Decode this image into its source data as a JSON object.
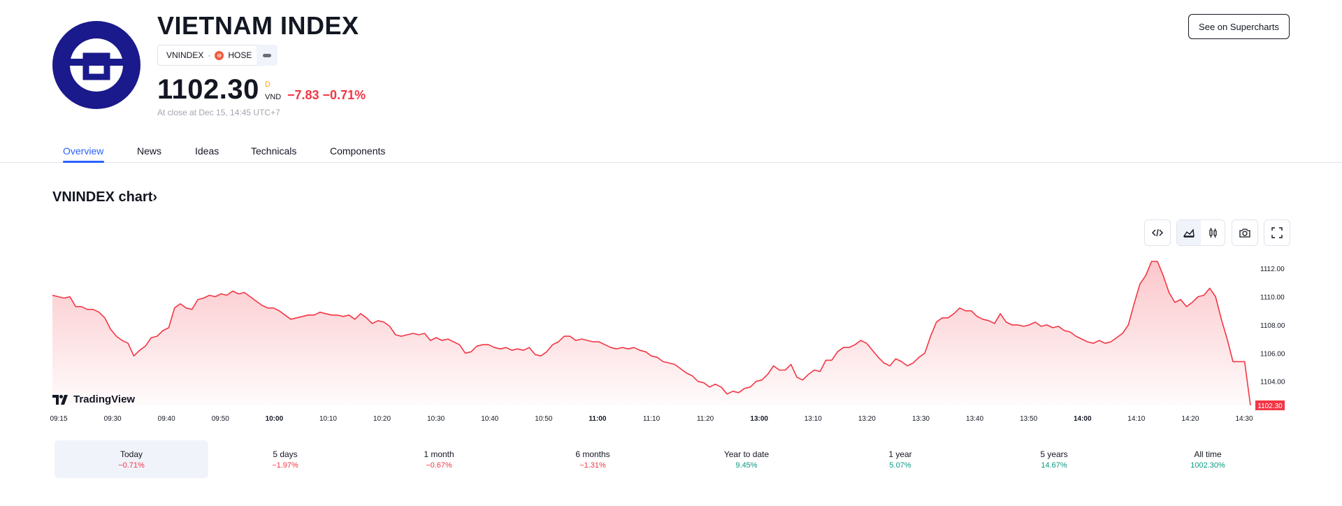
{
  "header": {
    "title": "VIETNAM INDEX",
    "symbol": "VNINDEX",
    "exchange": "HOSE",
    "price": "1102.30",
    "price_flag": "D",
    "currency": "VND",
    "change": "−7.83 −0.71%",
    "close_info": "At close at Dec 15, 14:45 UTC+7",
    "supercharts_label": "See on Supercharts"
  },
  "tabs": [
    {
      "label": "Overview",
      "active": true
    },
    {
      "label": "News"
    },
    {
      "label": "Ideas"
    },
    {
      "label": "Technicals"
    },
    {
      "label": "Components"
    }
  ],
  "chart_section": {
    "title": "VNINDEX chart›",
    "tools": [
      "embed-icon",
      "area-chart-icon",
      "candles-icon",
      "camera-icon",
      "fullscreen-icon"
    ],
    "watermark": "TradingView"
  },
  "chart_data": {
    "type": "area",
    "color": "#f23645",
    "y_ticks": [
      "1112.00",
      "1110.00",
      "1108.00",
      "1106.00",
      "1104.00"
    ],
    "ylim": [
      1102.3,
      1112.7
    ],
    "x_ticks": [
      "09:15",
      "09:30",
      "09:40",
      "09:50",
      "10:00",
      "10:10",
      "10:20",
      "10:30",
      "10:40",
      "10:50",
      "11:00",
      "11:10",
      "11:20",
      "13:00",
      "13:10",
      "13:20",
      "13:30",
      "13:40",
      "13:50",
      "14:00",
      "14:10",
      "14:20",
      "14:30"
    ],
    "bold_ticks": [
      "10:00",
      "11:00",
      "13:00",
      "14:00"
    ],
    "last_price_label": "1102.30",
    "points": [
      [
        "09:15",
        1110.1
      ],
      [
        "09:17",
        1110.0
      ],
      [
        "09:19",
        1109.9
      ],
      [
        "09:20",
        1110.0
      ],
      [
        "09:22",
        1109.3
      ],
      [
        "09:24",
        1109.3
      ],
      [
        "09:26",
        1109.1
      ],
      [
        "09:28",
        1109.1
      ],
      [
        "09:30",
        1108.9
      ],
      [
        "09:31",
        1108.5
      ],
      [
        "09:33",
        1107.7
      ],
      [
        "09:35",
        1107.2
      ],
      [
        "09:37",
        1106.9
      ],
      [
        "09:38",
        1106.7
      ],
      [
        "09:40",
        1105.8
      ],
      [
        "09:41",
        1106.2
      ],
      [
        "09:43",
        1106.5
      ],
      [
        "09:44",
        1107.1
      ],
      [
        "09:46",
        1107.2
      ],
      [
        "09:48",
        1107.6
      ],
      [
        "09:49",
        1107.8
      ],
      [
        "09:50",
        1109.2
      ],
      [
        "09:52",
        1109.5
      ],
      [
        "09:54",
        1109.2
      ],
      [
        "09:55",
        1109.1
      ],
      [
        "09:56",
        1109.8
      ],
      [
        "09:58",
        1109.9
      ],
      [
        "09:59",
        1110.1
      ],
      [
        "10:01",
        1110.0
      ],
      [
        "10:02",
        1110.2
      ],
      [
        "10:04",
        1110.1
      ],
      [
        "10:05",
        1110.4
      ],
      [
        "10:07",
        1110.2
      ],
      [
        "10:08",
        1110.3
      ],
      [
        "10:10",
        1110.0
      ],
      [
        "10:11",
        1109.7
      ],
      [
        "10:13",
        1109.4
      ],
      [
        "10:14",
        1109.2
      ],
      [
        "10:16",
        1109.2
      ],
      [
        "10:18",
        1109.0
      ],
      [
        "10:19",
        1108.7
      ],
      [
        "10:21",
        1108.4
      ],
      [
        "10:22",
        1108.5
      ],
      [
        "10:24",
        1108.6
      ],
      [
        "10:25",
        1108.7
      ],
      [
        "10:27",
        1108.7
      ],
      [
        "10:29",
        1108.9
      ],
      [
        "10:30",
        1108.8
      ],
      [
        "10:32",
        1108.7
      ],
      [
        "10:33",
        1108.7
      ],
      [
        "10:35",
        1108.6
      ],
      [
        "10:37",
        1108.7
      ],
      [
        "10:38",
        1108.4
      ],
      [
        "10:40",
        1108.8
      ],
      [
        "10:41",
        1108.5
      ],
      [
        "10:43",
        1108.1
      ],
      [
        "10:45",
        1108.3
      ],
      [
        "10:46",
        1108.2
      ],
      [
        "10:48",
        1107.9
      ],
      [
        "10:49",
        1107.3
      ],
      [
        "10:51",
        1107.2
      ],
      [
        "10:52",
        1107.3
      ],
      [
        "10:54",
        1107.4
      ],
      [
        "10:56",
        1107.3
      ],
      [
        "10:57",
        1107.4
      ],
      [
        "10:59",
        1106.9
      ],
      [
        "11:00",
        1107.1
      ],
      [
        "11:02",
        1106.9
      ],
      [
        "11:03",
        1107.0
      ],
      [
        "11:05",
        1106.8
      ],
      [
        "11:07",
        1106.6
      ],
      [
        "11:08",
        1106.0
      ],
      [
        "11:10",
        1106.1
      ],
      [
        "11:11",
        1106.5
      ],
      [
        "11:13",
        1106.6
      ],
      [
        "11:14",
        1106.6
      ],
      [
        "11:16",
        1106.4
      ],
      [
        "11:18",
        1106.3
      ],
      [
        "11:19",
        1106.4
      ],
      [
        "11:21",
        1106.2
      ],
      [
        "11:22",
        1106.3
      ],
      [
        "11:24",
        1106.2
      ],
      [
        "11:26",
        1106.4
      ],
      [
        "11:27",
        1105.9
      ],
      [
        "11:29",
        1105.8
      ],
      [
        "11:30",
        1106.1
      ],
      [
        "11:32",
        1106.6
      ],
      [
        "11:33",
        1106.8
      ],
      [
        "11:35",
        1107.2
      ],
      [
        "11:37",
        1107.2
      ],
      [
        "11:38",
        1106.9
      ],
      [
        "11:40",
        1107.0
      ],
      [
        "11:41",
        1106.9
      ],
      [
        "11:43",
        1106.8
      ],
      [
        "11:45",
        1106.8
      ],
      [
        "11:46",
        1106.6
      ],
      [
        "11:48",
        1106.4
      ],
      [
        "11:49",
        1106.3
      ],
      [
        "11:51",
        1106.4
      ],
      [
        "11:52",
        1106.3
      ],
      [
        "11:54",
        1106.4
      ],
      [
        "11:56",
        1106.2
      ],
      [
        "11:57",
        1106.1
      ],
      [
        "11:59",
        1105.8
      ],
      [
        "12:00",
        1105.7
      ],
      [
        "12:02",
        1105.4
      ],
      [
        "12:04",
        1105.3
      ],
      [
        "12:05",
        1105.2
      ],
      [
        "12:07",
        1104.9
      ],
      [
        "12:08",
        1104.6
      ],
      [
        "12:10",
        1104.4
      ],
      [
        "12:12",
        1104.0
      ],
      [
        "12:13",
        1103.9
      ],
      [
        "12:15",
        1103.6
      ],
      [
        "12:16",
        1103.8
      ],
      [
        "12:18",
        1103.6
      ],
      [
        "12:20",
        1103.1
      ],
      [
        "12:21",
        1103.3
      ],
      [
        "12:23",
        1103.2
      ],
      [
        "12:24",
        1103.5
      ],
      [
        "12:26",
        1103.6
      ],
      [
        "12:28",
        1104.0
      ],
      [
        "12:29",
        1104.1
      ],
      [
        "12:31",
        1104.5
      ],
      [
        "12:32",
        1105.1
      ],
      [
        "12:34",
        1104.8
      ],
      [
        "12:36",
        1104.8
      ],
      [
        "12:37",
        1105.2
      ],
      [
        "12:39",
        1104.3
      ],
      [
        "12:40",
        1104.1
      ],
      [
        "12:42",
        1104.5
      ],
      [
        "12:44",
        1104.8
      ],
      [
        "12:45",
        1104.7
      ],
      [
        "12:47",
        1105.5
      ],
      [
        "12:48",
        1105.5
      ],
      [
        "12:50",
        1106.1
      ],
      [
        "12:52",
        1106.4
      ],
      [
        "12:53",
        1106.4
      ],
      [
        "12:55",
        1106.6
      ],
      [
        "12:56",
        1106.9
      ],
      [
        "12:58",
        1106.7
      ],
      [
        "13:00",
        1106.2
      ],
      [
        "13:01",
        1105.7
      ],
      [
        "13:03",
        1105.3
      ],
      [
        "13:04",
        1105.1
      ],
      [
        "13:06",
        1105.6
      ],
      [
        "13:08",
        1105.4
      ],
      [
        "13:09",
        1105.1
      ],
      [
        "13:11",
        1105.3
      ],
      [
        "13:12",
        1105.7
      ],
      [
        "13:14",
        1106.0
      ],
      [
        "13:16",
        1107.2
      ],
      [
        "13:17",
        1108.2
      ],
      [
        "13:19",
        1108.5
      ],
      [
        "13:20",
        1108.5
      ],
      [
        "13:22",
        1108.8
      ],
      [
        "13:24",
        1109.2
      ],
      [
        "13:25",
        1109.0
      ],
      [
        "13:27",
        1109.0
      ],
      [
        "13:28",
        1108.6
      ],
      [
        "13:30",
        1108.4
      ],
      [
        "13:32",
        1108.3
      ],
      [
        "13:33",
        1108.1
      ],
      [
        "13:35",
        1108.8
      ],
      [
        "13:36",
        1108.2
      ],
      [
        "13:38",
        1108.0
      ],
      [
        "13:40",
        1108.0
      ],
      [
        "13:41",
        1107.9
      ],
      [
        "13:43",
        1108.0
      ],
      [
        "13:44",
        1108.2
      ],
      [
        "13:46",
        1107.9
      ],
      [
        "13:48",
        1108.0
      ],
      [
        "13:49",
        1107.8
      ],
      [
        "13:51",
        1107.9
      ],
      [
        "13:52",
        1107.6
      ],
      [
        "13:54",
        1107.5
      ],
      [
        "13:56",
        1107.2
      ],
      [
        "13:57",
        1107.0
      ],
      [
        "13:59",
        1106.8
      ],
      [
        "14:00",
        1106.7
      ],
      [
        "14:02",
        1106.9
      ],
      [
        "14:04",
        1106.7
      ],
      [
        "14:05",
        1106.8
      ],
      [
        "14:07",
        1107.1
      ],
      [
        "14:08",
        1107.4
      ],
      [
        "14:10",
        1108.0
      ],
      [
        "14:12",
        1109.5
      ],
      [
        "14:13",
        1110.9
      ],
      [
        "14:15",
        1111.5
      ],
      [
        "14:16",
        1112.5
      ],
      [
        "14:18",
        1112.5
      ],
      [
        "14:20",
        1111.5
      ],
      [
        "14:21",
        1110.3
      ],
      [
        "14:23",
        1109.6
      ],
      [
        "14:24",
        1109.8
      ],
      [
        "14:26",
        1109.3
      ],
      [
        "14:28",
        1109.6
      ],
      [
        "14:29",
        1110.0
      ],
      [
        "14:31",
        1110.1
      ],
      [
        "14:32",
        1110.6
      ],
      [
        "14:34",
        1110.0
      ],
      [
        "14:36",
        1108.4
      ],
      [
        "14:37",
        1107.0
      ],
      [
        "14:39",
        1105.4
      ],
      [
        "14:40",
        1105.4
      ],
      [
        "14:42",
        1105.4
      ],
      [
        "14:44",
        1102.3
      ]
    ]
  },
  "periods": [
    {
      "label": "Today",
      "value": "−0.71%",
      "dir": "neg",
      "active": true
    },
    {
      "label": "5 days",
      "value": "−1.97%",
      "dir": "neg"
    },
    {
      "label": "1 month",
      "value": "−0.67%",
      "dir": "neg"
    },
    {
      "label": "6 months",
      "value": "−1.31%",
      "dir": "neg"
    },
    {
      "label": "Year to date",
      "value": "9.45%",
      "dir": "pos"
    },
    {
      "label": "1 year",
      "value": "5.07%",
      "dir": "pos"
    },
    {
      "label": "5 years",
      "value": "14.67%",
      "dir": "pos"
    },
    {
      "label": "All time",
      "value": "1002.30%",
      "dir": "pos"
    }
  ]
}
